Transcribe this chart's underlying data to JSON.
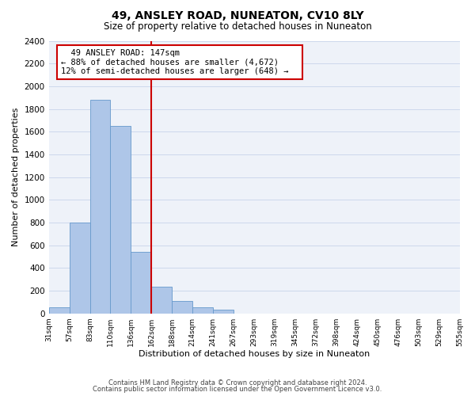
{
  "title": "49, ANSLEY ROAD, NUNEATON, CV10 8LY",
  "subtitle": "Size of property relative to detached houses in Nuneaton",
  "xlabel": "Distribution of detached houses by size in Nuneaton",
  "ylabel": "Number of detached properties",
  "bar_values": [
    55,
    800,
    1880,
    1650,
    540,
    235,
    110,
    55,
    30,
    0,
    0,
    0,
    0,
    0,
    0,
    0,
    0,
    0,
    0,
    0
  ],
  "bar_labels": [
    "31sqm",
    "57sqm",
    "83sqm",
    "110sqm",
    "136sqm",
    "162sqm",
    "188sqm",
    "214sqm",
    "241sqm",
    "267sqm",
    "293sqm",
    "319sqm",
    "345sqm",
    "372sqm",
    "398sqm",
    "424sqm",
    "450sqm",
    "476sqm",
    "503sqm",
    "529sqm",
    "555sqm"
  ],
  "bar_color": "#aec6e8",
  "bar_edge_color": "#6699cc",
  "bar_edge_width": 0.6,
  "ylim": [
    0,
    2400
  ],
  "yticks": [
    0,
    200,
    400,
    600,
    800,
    1000,
    1200,
    1400,
    1600,
    1800,
    2000,
    2200,
    2400
  ],
  "property_line_x": 4.5,
  "annotation_title": "49 ANSLEY ROAD: 147sqm",
  "annotation_line1": "← 88% of detached houses are smaller (4,672)",
  "annotation_line2": "12% of semi-detached houses are larger (648) →",
  "annotation_box_color": "#cc0000",
  "grid_color": "#ccd8ec",
  "background_color": "#eef2f9",
  "footer_line1": "Contains HM Land Registry data © Crown copyright and database right 2024.",
  "footer_line2": "Contains public sector information licensed under the Open Government Licence v3.0."
}
